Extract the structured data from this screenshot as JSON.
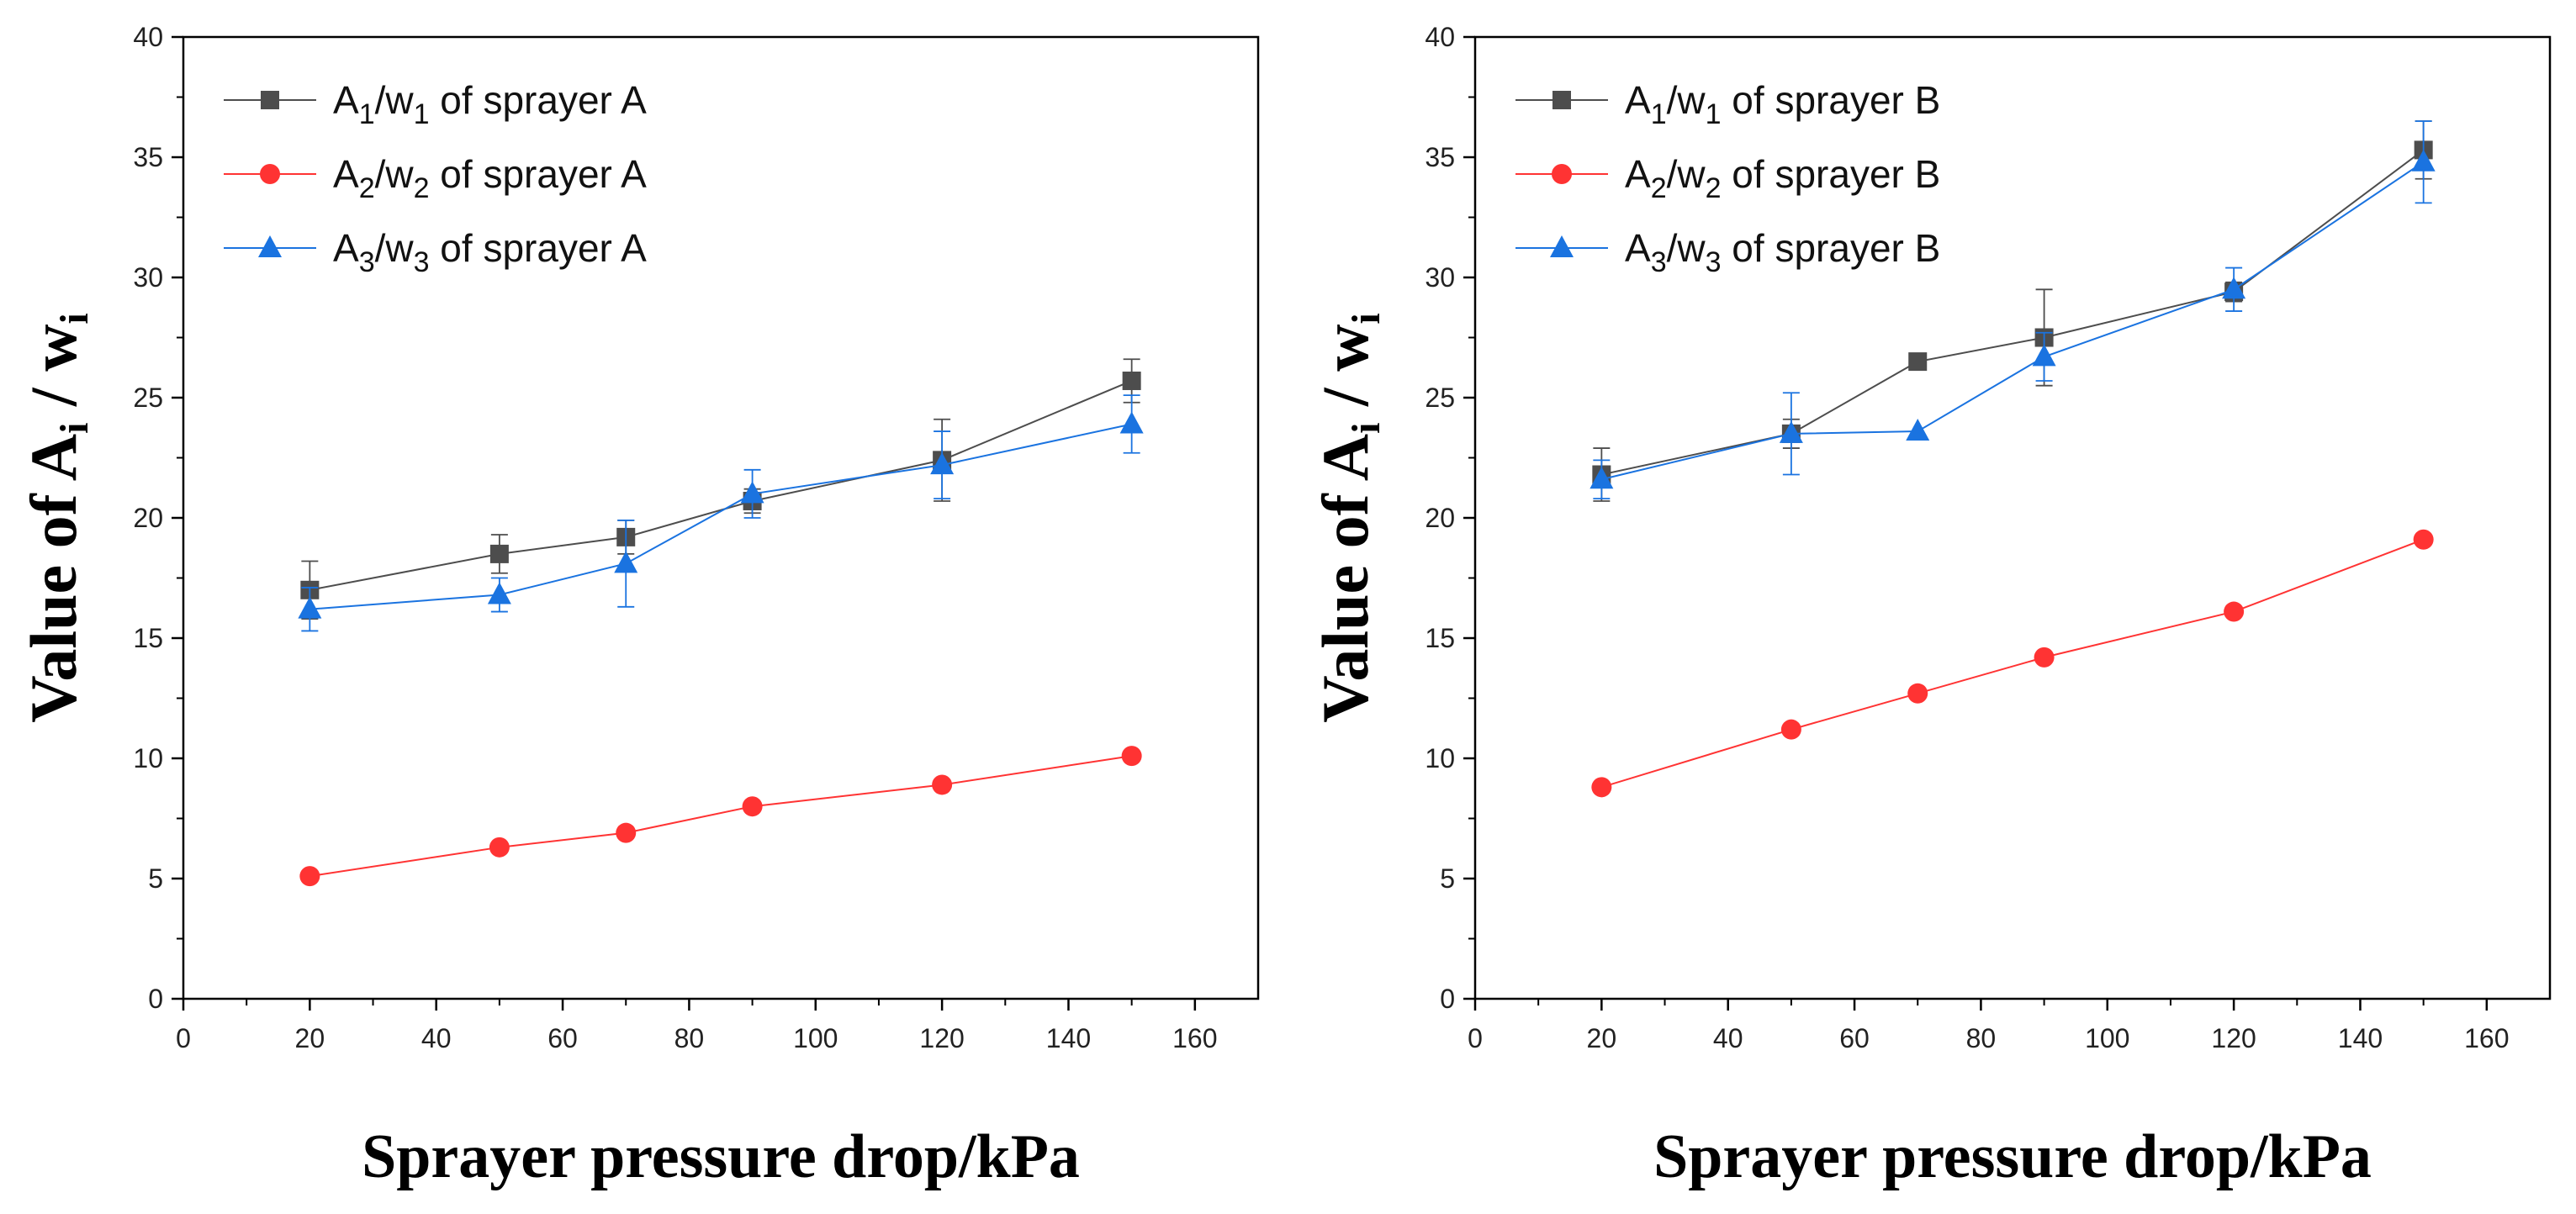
{
  "chart_data": [
    {
      "type": "line",
      "title": "",
      "xlabel": "Sprayer pressure drop/kPa",
      "ylabel": {
        "prefix": "Value of A",
        "sub1": "i",
        "mid": " / w",
        "sub2": "i"
      },
      "xlim": [
        0,
        170
      ],
      "ylim": [
        0,
        40
      ],
      "xticks": [
        "0",
        "20",
        "40",
        "60",
        "80",
        "100",
        "120",
        "140",
        "160"
      ],
      "yticks": [
        "0",
        "5",
        "10",
        "15",
        "20",
        "25",
        "30",
        "35",
        "40"
      ],
      "legend_position": "top-left",
      "x": [
        20,
        50,
        70,
        90,
        120,
        150
      ],
      "series": [
        {
          "name": "A1/w1 of sprayer A",
          "legend": {
            "a": "A",
            "s1": "1",
            "b": "/w",
            "s2": "1",
            "c": " of sprayer A"
          },
          "color": "#4d4d4d",
          "marker": "square",
          "values": [
            17.0,
            18.5,
            19.2,
            20.7,
            22.4,
            25.7
          ],
          "errors": [
            1.2,
            0.8,
            0.7,
            0.5,
            1.7,
            0.9
          ]
        },
        {
          "name": "A2/w2 of sprayer A",
          "legend": {
            "a": "A",
            "s1": "2",
            "b": "/w",
            "s2": "2",
            "c": " of sprayer A"
          },
          "color": "#ff3333",
          "marker": "circle",
          "values": [
            5.1,
            6.3,
            6.9,
            8.0,
            8.9,
            10.1
          ],
          "errors": [
            0,
            0,
            0,
            0,
            0,
            0
          ]
        },
        {
          "name": "A3/w3 of sprayer A",
          "legend": {
            "a": "A",
            "s1": "3",
            "b": "/w",
            "s2": "3",
            "c": " of sprayer A"
          },
          "color": "#1a73e0",
          "marker": "triangle",
          "values": [
            16.2,
            16.8,
            18.1,
            21.0,
            22.2,
            23.9
          ],
          "errors": [
            0.9,
            0.7,
            1.8,
            1.0,
            1.4,
            1.2
          ]
        }
      ]
    },
    {
      "type": "line",
      "title": "",
      "xlabel": "Sprayer pressure drop/kPa",
      "ylabel": {
        "prefix": "Value of A",
        "sub1": "i",
        "mid": " / w",
        "sub2": "i"
      },
      "xlim": [
        0,
        170
      ],
      "ylim": [
        0,
        40
      ],
      "xticks": [
        "0",
        "20",
        "40",
        "60",
        "80",
        "100",
        "120",
        "140",
        "160"
      ],
      "yticks": [
        "0",
        "5",
        "10",
        "15",
        "20",
        "25",
        "30",
        "35",
        "40"
      ],
      "legend_position": "top-left",
      "x": [
        20,
        50,
        70,
        90,
        120,
        150
      ],
      "series": [
        {
          "name": "A1/w1 of sprayer B",
          "legend": {
            "a": "A",
            "s1": "1",
            "b": "/w",
            "s2": "1",
            "c": " of sprayer B"
          },
          "color": "#4d4d4d",
          "marker": "square",
          "values": [
            21.8,
            23.5,
            26.5,
            27.5,
            29.4,
            35.3
          ],
          "errors": [
            1.1,
            0.6,
            0,
            2.0,
            0.4,
            1.2
          ]
        },
        {
          "name": "A2/w2 of sprayer B",
          "legend": {
            "a": "A",
            "s1": "2",
            "b": "/w",
            "s2": "2",
            "c": " of sprayer B"
          },
          "color": "#ff3333",
          "marker": "circle",
          "values": [
            8.8,
            11.2,
            12.7,
            14.2,
            16.1,
            19.1
          ],
          "errors": [
            0,
            0,
            0,
            0,
            0,
            0
          ]
        },
        {
          "name": "A3/w3 of sprayer B",
          "legend": {
            "a": "A",
            "s1": "3",
            "b": "/w",
            "s2": "3",
            "c": " of sprayer B"
          },
          "color": "#1a73e0",
          "marker": "triangle",
          "values": [
            21.6,
            23.5,
            23.6,
            26.7,
            29.5,
            34.8
          ],
          "errors": [
            0.8,
            1.7,
            0,
            1.0,
            0.9,
            1.7
          ]
        }
      ]
    }
  ]
}
